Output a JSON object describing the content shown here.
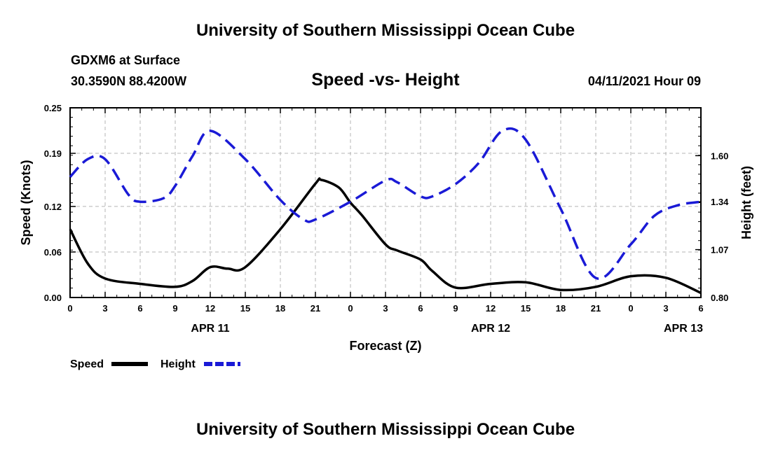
{
  "header": {
    "title_top": "University of Southern Mississippi Ocean Cube",
    "title_bottom": "University of Southern Mississippi Ocean Cube",
    "station": "GDXM6 at Surface",
    "location": "30.3590N  88.4200W",
    "chart_title": "Speed -vs- Height",
    "date": "04/11/2021 Hour 09"
  },
  "chart_data": {
    "type": "line",
    "title": "Speed -vs- Height",
    "xlabel": "Forecast (Z)",
    "ylabel": "Speed (Knots)",
    "y2label": "Height (feet)",
    "x_range": [
      0,
      54
    ],
    "xticks": [
      0,
      3,
      6,
      9,
      12,
      15,
      18,
      21,
      24,
      27,
      30,
      33,
      36,
      39,
      42,
      45,
      48,
      51,
      54
    ],
    "xtick_labels": [
      "0",
      "3",
      "6",
      "9",
      "12",
      "15",
      "18",
      "21",
      "0",
      "3",
      "6",
      "9",
      "12",
      "15",
      "18",
      "21",
      "0",
      "3",
      "6"
    ],
    "date_labels": [
      {
        "x": 12,
        "label": "APR 11"
      },
      {
        "x": 36,
        "label": "APR 12"
      },
      {
        "x": 52.5,
        "label": "APR 13"
      }
    ],
    "ylim": [
      0,
      0.25
    ],
    "yticks": [
      0.0,
      0.06,
      0.12,
      0.19,
      0.25
    ],
    "ytick_labels": [
      "0.00",
      "0.06",
      "0.12",
      "0.19",
      "0.25"
    ],
    "y2lim": [
      0.8,
      1.87
    ],
    "y2ticks": [
      0.8,
      1.07,
      1.34,
      1.6
    ],
    "y2tick_labels": [
      "0.80",
      "1.07",
      "1.34",
      "1.60"
    ],
    "grid": true,
    "series": [
      {
        "name": "Speed",
        "axis": "left",
        "style": "solid",
        "color": "#000000",
        "x": [
          0,
          1.5,
          3,
          6,
          9,
          10.5,
          12,
          13.5,
          15,
          18,
          21,
          21.5,
          23,
          24,
          25,
          27,
          28,
          30,
          31,
          33,
          36,
          39,
          42,
          45,
          48,
          51,
          54
        ],
        "values": [
          0.09,
          0.045,
          0.025,
          0.018,
          0.014,
          0.022,
          0.04,
          0.038,
          0.04,
          0.09,
          0.15,
          0.155,
          0.145,
          0.125,
          0.108,
          0.07,
          0.062,
          0.05,
          0.035,
          0.013,
          0.018,
          0.02,
          0.01,
          0.014,
          0.028,
          0.026,
          0.006
        ]
      },
      {
        "name": "Height",
        "axis": "right",
        "style": "dashed",
        "color": "#1a1ad6",
        "x": [
          0,
          1.5,
          3,
          5,
          6,
          8,
          9,
          10.5,
          12,
          15,
          18,
          20,
          21,
          24,
          27,
          28,
          30,
          31,
          33,
          35,
          37,
          39,
          42,
          45,
          48,
          50,
          52,
          54
        ],
        "values": [
          1.48,
          1.58,
          1.58,
          1.38,
          1.34,
          1.36,
          1.43,
          1.6,
          1.74,
          1.58,
          1.35,
          1.24,
          1.24,
          1.34,
          1.46,
          1.45,
          1.37,
          1.37,
          1.44,
          1.56,
          1.74,
          1.69,
          1.3,
          0.91,
          1.1,
          1.26,
          1.32,
          1.34
        ]
      }
    ],
    "legend": {
      "position": "bottom-left",
      "items": [
        {
          "label": "Speed",
          "color": "#000000",
          "style": "solid"
        },
        {
          "label": "Height",
          "color": "#1a1ad6",
          "style": "dashed"
        }
      ]
    }
  }
}
